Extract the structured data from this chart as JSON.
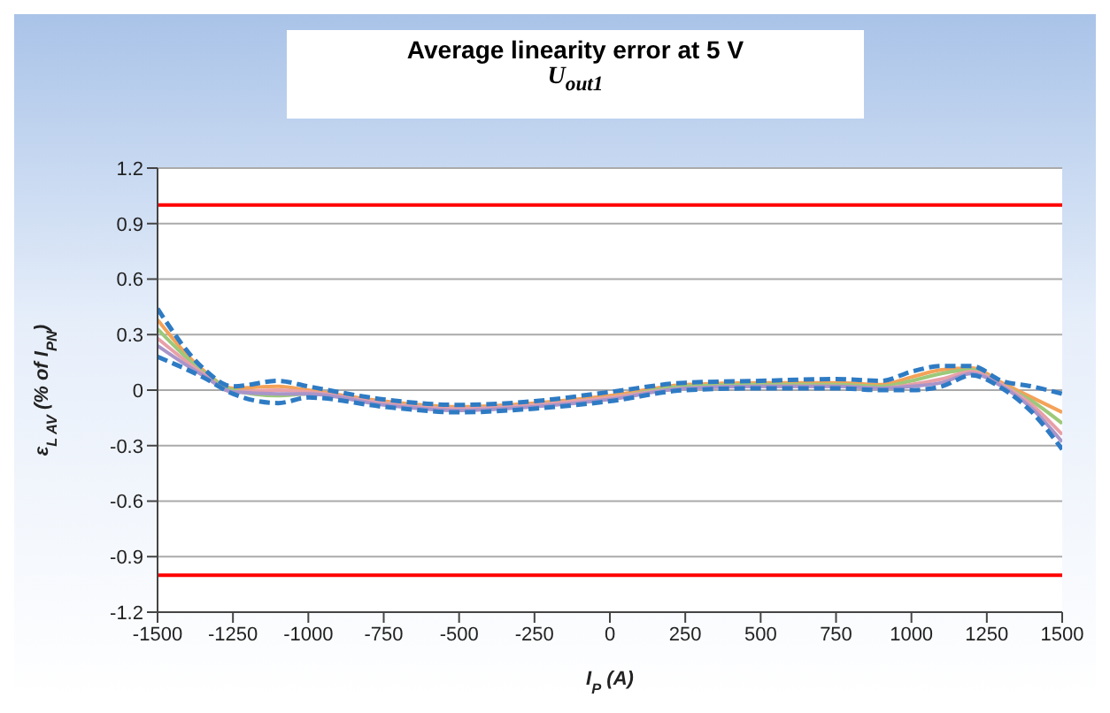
{
  "chart_data": {
    "type": "line",
    "title": "Average linearity error at 5 V",
    "subtitle": "U$_{out1}$",
    "xlabel": "I$_{P}$ (A)",
    "ylabel": "ε$_{L AV}$ (% of I$_{PN}$)",
    "x": [
      -1500,
      -1350,
      -1250,
      -1100,
      -1000,
      -750,
      -500,
      -250,
      0,
      250,
      500,
      750,
      900,
      1000,
      1100,
      1200,
      1300,
      1400,
      1500
    ],
    "series": [
      {
        "color": "#f4a259",
        "values": [
          0.38,
          0.11,
          0.01,
          0.02,
          0.0,
          -0.06,
          -0.09,
          -0.07,
          -0.03,
          0.03,
          0.04,
          0.04,
          0.03,
          0.07,
          0.11,
          0.12,
          0.04,
          -0.04,
          -0.12
        ]
      },
      {
        "color": "#9cc97a",
        "values": [
          0.33,
          0.1,
          0.0,
          -0.03,
          -0.02,
          -0.07,
          -0.1,
          -0.08,
          -0.04,
          0.02,
          0.03,
          0.03,
          0.02,
          0.05,
          0.09,
          0.11,
          0.03,
          -0.06,
          -0.18
        ]
      },
      {
        "color": "#e8a0a8",
        "values": [
          0.28,
          0.09,
          -0.01,
          0.0,
          -0.01,
          -0.07,
          -0.1,
          -0.08,
          -0.04,
          0.01,
          0.02,
          0.02,
          0.01,
          0.03,
          0.06,
          0.1,
          0.03,
          -0.08,
          -0.24
        ]
      },
      {
        "color": "#a995c9",
        "values": [
          0.24,
          0.08,
          -0.01,
          -0.02,
          -0.02,
          -0.08,
          -0.11,
          -0.09,
          -0.05,
          0.01,
          0.02,
          0.02,
          0.01,
          0.02,
          0.04,
          0.09,
          0.02,
          -0.1,
          -0.28
        ]
      },
      {
        "color": "#2e7bc4",
        "line_style": "dashed",
        "values": [
          0.44,
          0.12,
          0.02,
          0.05,
          0.02,
          -0.05,
          -0.08,
          -0.06,
          -0.01,
          0.04,
          0.05,
          0.06,
          0.05,
          0.1,
          0.13,
          0.13,
          0.05,
          0.02,
          -0.02
        ]
      },
      {
        "color": "#2e7bc4",
        "line_style": "dashed",
        "values": [
          0.18,
          0.07,
          -0.02,
          -0.07,
          -0.04,
          -0.09,
          -0.12,
          -0.1,
          -0.06,
          0,
          0.01,
          0.01,
          0,
          0,
          0.02,
          0.08,
          0.01,
          -0.12,
          -0.32
        ]
      }
    ],
    "xlim": [
      -1500,
      1500
    ],
    "xticks": [
      -1500,
      -1250,
      -1000,
      -750,
      -500,
      -250,
      0,
      250,
      500,
      750,
      1000,
      1250,
      1500
    ],
    "ylim": [
      -1.2,
      1.2
    ],
    "yticks": [
      -1.2,
      -0.9,
      -0.6,
      -0.3,
      0,
      0.3,
      0.6,
      0.9,
      1.2
    ],
    "ref_lines": [
      {
        "axis": "y",
        "value": 1,
        "color": "#ff0000"
      },
      {
        "axis": "y",
        "value": -1,
        "color": "#ff0000"
      }
    ],
    "grid": "y",
    "marker": "none",
    "line_style": "solid"
  }
}
